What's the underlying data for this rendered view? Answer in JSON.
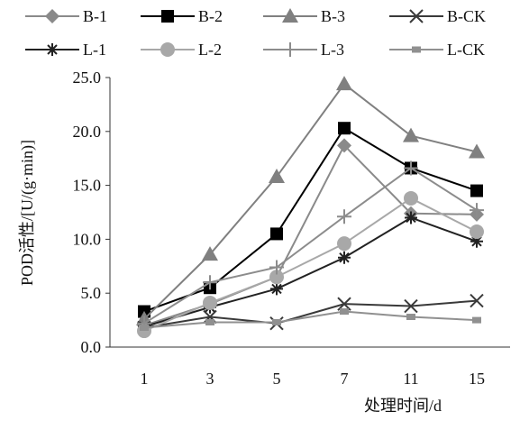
{
  "chart_data": {
    "type": "line",
    "xlabel": "处理时间/d",
    "ylabel": "POD活性/[U/(g·min)]",
    "categories": [
      "1",
      "3",
      "5",
      "7",
      "11",
      "15"
    ],
    "yticks": [
      "0.0",
      "5.0",
      "10.0",
      "15.0",
      "20.0",
      "25.0"
    ],
    "ylim": [
      0,
      25
    ],
    "grid": false,
    "legend_position": "top",
    "series": [
      {
        "name": "B-1",
        "values": [
          2.0,
          4.0,
          6.5,
          18.7,
          12.4,
          12.3
        ],
        "color": "#8a8a8a",
        "marker": "diamond"
      },
      {
        "name": "B-2",
        "values": [
          3.3,
          5.5,
          10.5,
          20.3,
          16.6,
          14.5
        ],
        "color": "#000000",
        "marker": "square"
      },
      {
        "name": "B-3",
        "values": [
          2.6,
          8.6,
          15.8,
          24.4,
          19.6,
          18.1
        ],
        "color": "#808080",
        "marker": "triangle"
      },
      {
        "name": "B-CK",
        "values": [
          1.8,
          2.8,
          2.2,
          4.0,
          3.8,
          4.3
        ],
        "color": "#3a3a3a",
        "marker": "x"
      },
      {
        "name": "L-1",
        "values": [
          1.9,
          3.7,
          5.4,
          8.3,
          12.0,
          9.8
        ],
        "color": "#222222",
        "marker": "star"
      },
      {
        "name": "L-2",
        "values": [
          1.5,
          4.1,
          6.5,
          9.6,
          13.8,
          10.7
        ],
        "color": "#a8a8a8",
        "marker": "circle"
      },
      {
        "name": "L-3",
        "values": [
          2.2,
          6.0,
          7.4,
          12.1,
          16.6,
          12.7
        ],
        "color": "#8c8c8c",
        "marker": "plus"
      },
      {
        "name": "L-CK",
        "values": [
          1.8,
          2.3,
          2.3,
          3.3,
          2.8,
          2.5
        ],
        "color": "#909090",
        "marker": "smallsquare"
      }
    ]
  }
}
